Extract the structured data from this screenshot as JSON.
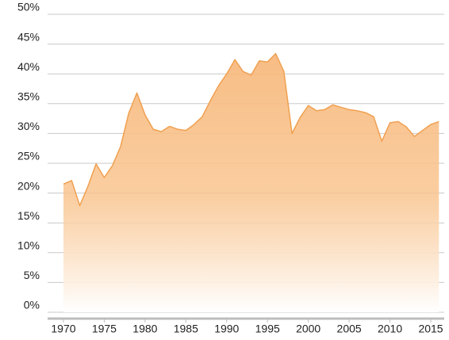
{
  "chart_data": {
    "type": "area",
    "x": [
      1970,
      1971,
      1972,
      1973,
      1974,
      1975,
      1976,
      1977,
      1978,
      1979,
      1980,
      1981,
      1982,
      1983,
      1984,
      1985,
      1986,
      1987,
      1988,
      1989,
      1990,
      1991,
      1992,
      1993,
      1994,
      1995,
      1996,
      1997,
      1998,
      1999,
      2000,
      2001,
      2002,
      2003,
      2004,
      2005,
      2006,
      2007,
      2008,
      2009,
      2010,
      2011,
      2012,
      2013,
      2014,
      2015,
      2016
    ],
    "values": [
      21.5,
      22.1,
      17.9,
      21.1,
      24.9,
      22.6,
      24.6,
      27.8,
      33.4,
      36.8,
      33.1,
      30.7,
      30.3,
      31.2,
      30.7,
      30.5,
      31.5,
      32.8,
      35.5,
      38.0,
      40.0,
      42.4,
      40.4,
      39.8,
      42.2,
      42.0,
      43.4,
      40.4,
      30.0,
      32.7,
      34.7,
      33.8,
      34.0,
      34.8,
      34.4,
      34.0,
      33.8,
      33.5,
      32.8,
      28.7,
      31.8,
      32.0,
      31.1,
      29.5,
      30.5,
      31.5,
      32.0
    ],
    "color": "#f0a050",
    "xlim": [
      1968.06,
      2016.65
    ],
    "xticks": [
      1970,
      1975,
      1980,
      1985,
      1990,
      1995,
      2000,
      2005,
      2010,
      2015
    ],
    "ylim": [
      0,
      50
    ],
    "yticks": [
      {
        "value": 0,
        "label": "0%"
      },
      {
        "value": 5,
        "label": "5%"
      },
      {
        "value": 10,
        "label": "10%"
      },
      {
        "value": 15,
        "label": "15%"
      },
      {
        "value": 20,
        "label": "20%"
      },
      {
        "value": 25,
        "label": "25%"
      },
      {
        "value": 30,
        "label": "30%"
      },
      {
        "value": 35,
        "label": "35%"
      },
      {
        "value": 40,
        "label": "40%"
      },
      {
        "value": 45,
        "label": "45%"
      },
      {
        "value": 50,
        "label": "50%"
      }
    ],
    "grid": true
  }
}
